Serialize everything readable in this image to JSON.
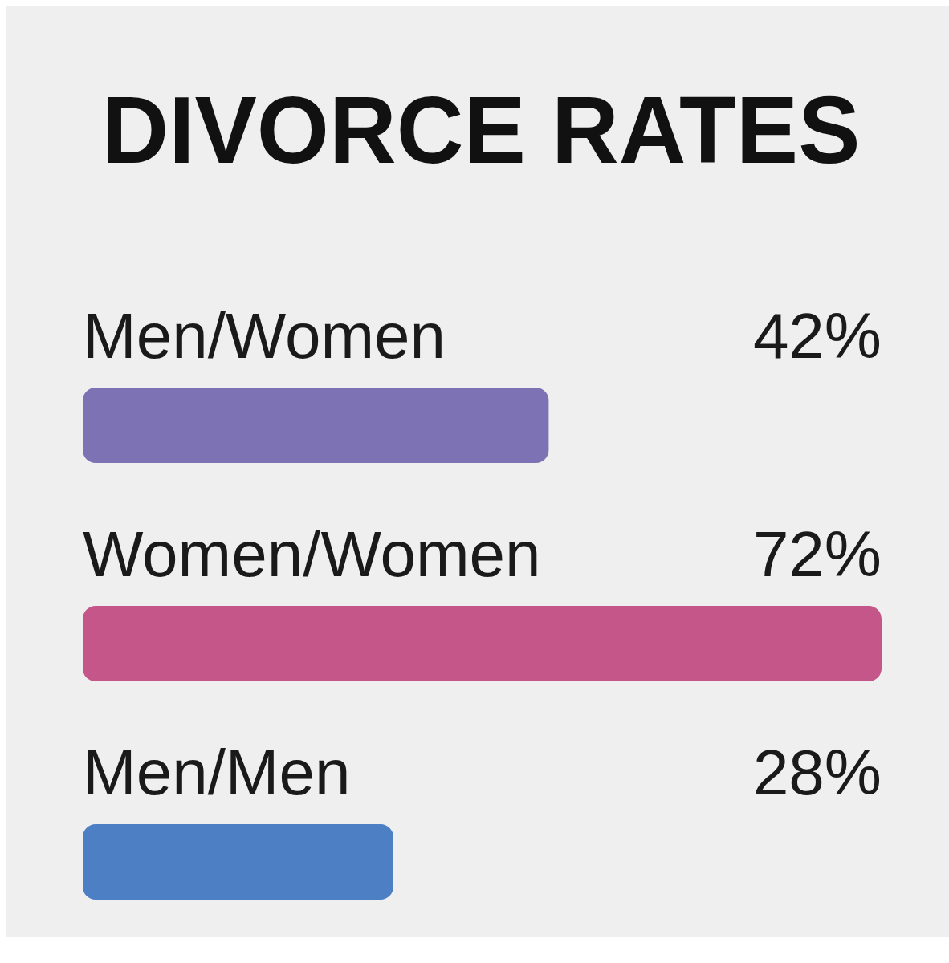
{
  "chart_data": {
    "type": "bar",
    "orientation": "horizontal",
    "title": "DIVORCE RATES",
    "categories": [
      "Men/Women",
      "Women/Women",
      "Men/Men"
    ],
    "values": [
      42,
      72,
      28
    ],
    "colors": [
      "#7d72b3",
      "#c4568a",
      "#4d7fc4"
    ],
    "value_labels": [
      "42%",
      "72%",
      "28%"
    ]
  }
}
